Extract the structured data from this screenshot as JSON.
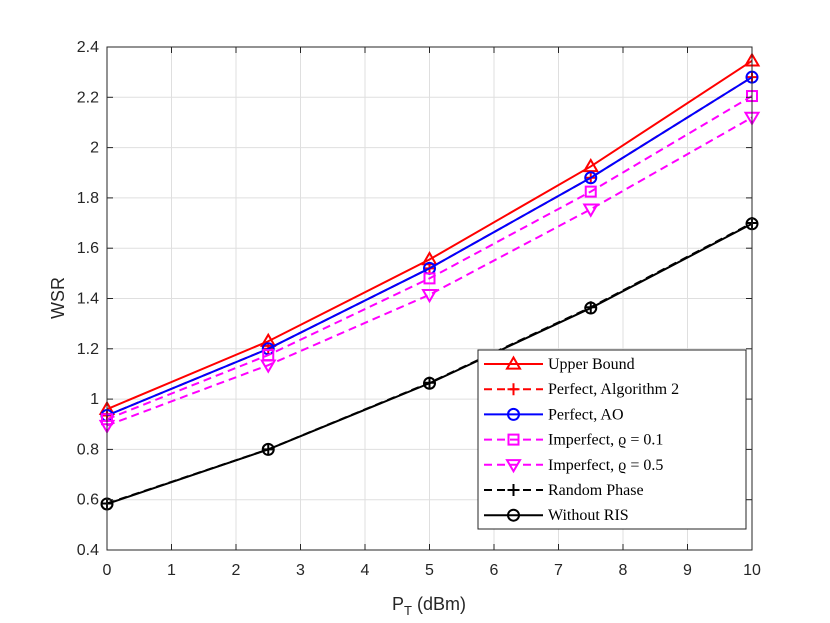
{
  "chart_data": {
    "type": "line",
    "title": "",
    "xlabel": "P",
    "xlabel_sub": "T",
    "xlabel_unit": "(dBm)",
    "ylabel": "WSR",
    "xlim": [
      0,
      10
    ],
    "ylim": [
      0.4,
      2.4
    ],
    "x_ticks": [
      "0",
      "1",
      "2",
      "3",
      "4",
      "5",
      "6",
      "7",
      "8",
      "9",
      "10"
    ],
    "y_ticks": [
      "0.4",
      "0.6",
      "0.8",
      "1",
      "1.2",
      "1.4",
      "1.6",
      "1.8",
      "2",
      "2.2",
      "2.4"
    ],
    "grid": true,
    "legend_position": "bottom-right",
    "x": [
      0,
      2.5,
      5,
      7.5,
      10
    ],
    "series": [
      {
        "name": "Upper Bound",
        "values": [
          0.96,
          1.23,
          1.555,
          1.925,
          2.345
        ],
        "color": "#ff0000",
        "dash": "solid",
        "marker": "triangle-up"
      },
      {
        "name": "Perfect, Algorithm 2",
        "values": [
          0.935,
          1.2,
          1.52,
          1.88,
          2.28
        ],
        "color": "#ff0000",
        "dash": "dashed",
        "marker": "plus"
      },
      {
        "name": "Perfect, AO",
        "values": [
          0.935,
          1.2,
          1.52,
          1.88,
          2.28
        ],
        "color": "#0000ff",
        "dash": "solid",
        "marker": "circle"
      },
      {
        "name": "Imperfect, ϱ = 0.1",
        "values": [
          0.92,
          1.175,
          1.48,
          1.825,
          2.205
        ],
        "color": "#ff00ff",
        "dash": "dashed",
        "marker": "square"
      },
      {
        "name": "Imperfect, ϱ = 0.5",
        "values": [
          0.895,
          1.135,
          1.415,
          1.755,
          2.12
        ],
        "color": "#ff00ff",
        "dash": "dashed",
        "marker": "triangle-down"
      },
      {
        "name": "Random Phase",
        "values": [
          0.585,
          0.8,
          1.065,
          1.365,
          1.7
        ],
        "color": "#000000",
        "dash": "dashed",
        "marker": "plus"
      },
      {
        "name": "Without RIS",
        "values": [
          0.583,
          0.8,
          1.063,
          1.362,
          1.697
        ],
        "color": "#000000",
        "dash": "solid",
        "marker": "circle"
      }
    ]
  }
}
